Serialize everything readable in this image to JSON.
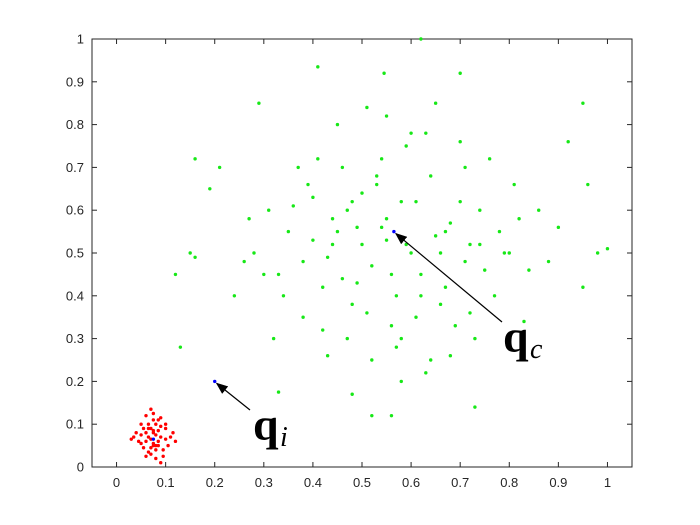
{
  "chart_data": {
    "type": "scatter",
    "xlim": [
      -0.05,
      1.05
    ],
    "ylim": [
      0,
      1
    ],
    "xticks": [
      0,
      0.1,
      0.2,
      0.3,
      0.4,
      0.5,
      0.6,
      0.7,
      0.8,
      0.9,
      1
    ],
    "yticks": [
      0,
      0.1,
      0.2,
      0.3,
      0.4,
      0.5,
      0.6,
      0.7,
      0.8,
      0.9,
      1
    ],
    "grid": false,
    "series": [
      {
        "color": "#17e817",
        "x": [
          0.62,
          0.41,
          0.545,
          0.7,
          0.95,
          0.16,
          0.12,
          0.13,
          0.33,
          0.52,
          0.73,
          1.0,
          0.98,
          0.95,
          0.16,
          0.15,
          0.19,
          0.21,
          0.29,
          0.92,
          0.96,
          0.48,
          0.56,
          0.45,
          0.5,
          0.55,
          0.6,
          0.65,
          0.58,
          0.52,
          0.47,
          0.43,
          0.62,
          0.68,
          0.72,
          0.57,
          0.53,
          0.49,
          0.44,
          0.4,
          0.38,
          0.36,
          0.64,
          0.7,
          0.75,
          0.78,
          0.8,
          0.82,
          0.66,
          0.61,
          0.54,
          0.51,
          0.46,
          0.42,
          0.59,
          0.63,
          0.67,
          0.71,
          0.74,
          0.56,
          0.5,
          0.48,
          0.58,
          0.62,
          0.69,
          0.77,
          0.35,
          0.33,
          0.31,
          0.28,
          0.26,
          0.39,
          0.41,
          0.45,
          0.55,
          0.6,
          0.64,
          0.73,
          0.79,
          0.84,
          0.86,
          0.88,
          0.57,
          0.52,
          0.47,
          0.43,
          0.38,
          0.34,
          0.3,
          0.65,
          0.7,
          0.76,
          0.81,
          0.54,
          0.59,
          0.49,
          0.44,
          0.66,
          0.72,
          0.61,
          0.53,
          0.4,
          0.37,
          0.46,
          0.68,
          0.74,
          0.83,
          0.9,
          0.27,
          0.24,
          0.32,
          0.56,
          0.63,
          0.51,
          0.58,
          0.42,
          0.48,
          0.67,
          0.71,
          0.55
        ],
        "y": [
          1.0,
          0.935,
          0.92,
          0.92,
          0.85,
          0.72,
          0.45,
          0.28,
          0.175,
          0.12,
          0.14,
          0.51,
          0.5,
          0.42,
          0.49,
          0.5,
          0.65,
          0.7,
          0.85,
          0.76,
          0.66,
          0.17,
          0.12,
          0.55,
          0.52,
          0.58,
          0.5,
          0.54,
          0.62,
          0.47,
          0.6,
          0.49,
          0.45,
          0.57,
          0.52,
          0.4,
          0.66,
          0.43,
          0.58,
          0.53,
          0.48,
          0.61,
          0.68,
          0.62,
          0.46,
          0.55,
          0.5,
          0.58,
          0.38,
          0.35,
          0.72,
          0.36,
          0.7,
          0.32,
          0.75,
          0.78,
          0.42,
          0.7,
          0.6,
          0.45,
          0.64,
          0.38,
          0.3,
          0.4,
          0.33,
          0.4,
          0.55,
          0.45,
          0.6,
          0.5,
          0.48,
          0.66,
          0.72,
          0.8,
          0.82,
          0.78,
          0.25,
          0.3,
          0.5,
          0.46,
          0.6,
          0.48,
          0.28,
          0.25,
          0.3,
          0.26,
          0.35,
          0.4,
          0.45,
          0.85,
          0.76,
          0.72,
          0.66,
          0.56,
          0.52,
          0.56,
          0.52,
          0.5,
          0.36,
          0.62,
          0.68,
          0.63,
          0.7,
          0.44,
          0.26,
          0.52,
          0.34,
          0.56,
          0.58,
          0.4,
          0.3,
          0.33,
          0.22,
          0.84,
          0.2,
          0.42,
          0.62,
          0.55,
          0.48,
          0.53
        ]
      },
      {
        "color": "#ff0000",
        "x": [
          0.075,
          0.06,
          0.09,
          0.07,
          0.08,
          0.05,
          0.1,
          0.065,
          0.085,
          0.055,
          0.095,
          0.04,
          0.11,
          0.07,
          0.08,
          0.06,
          0.09,
          0.075,
          0.05,
          0.1,
          0.045,
          0.105,
          0.065,
          0.085,
          0.07,
          0.08,
          0.035,
          0.115,
          0.06,
          0.09,
          0.075,
          0.055,
          0.095,
          0.07,
          0.08,
          0.065,
          0.085,
          0.05,
          0.1,
          0.075,
          0.12,
          0.03,
          0.07,
          0.09,
          0.06,
          0.08,
          0.075,
          0.065,
          0.085,
          0.075
        ],
        "y": [
          0.08,
          0.06,
          0.07,
          0.09,
          0.05,
          0.075,
          0.065,
          0.1,
          0.11,
          0.045,
          0.04,
          0.08,
          0.07,
          0.03,
          0.02,
          0.12,
          0.095,
          0.055,
          0.1,
          0.09,
          0.06,
          0.05,
          0.035,
          0.085,
          0.065,
          0.075,
          0.07,
          0.08,
          0.025,
          0.115,
          0.125,
          0.09,
          0.025,
          0.045,
          0.1,
          0.07,
          0.05,
          0.055,
          0.1,
          0.085,
          0.06,
          0.065,
          0.135,
          0.01,
          0.08,
          0.04,
          0.11,
          0.09,
          0.06,
          0.05
        ]
      },
      {
        "color": "#0000ff",
        "x": [
          0.565,
          0.2,
          0.075
        ],
        "y": [
          0.55,
          0.2,
          0.065
        ]
      }
    ],
    "annotations": [
      {
        "label": "q",
        "subscript": "c"
      },
      {
        "label": "q",
        "subscript": "i"
      }
    ]
  }
}
